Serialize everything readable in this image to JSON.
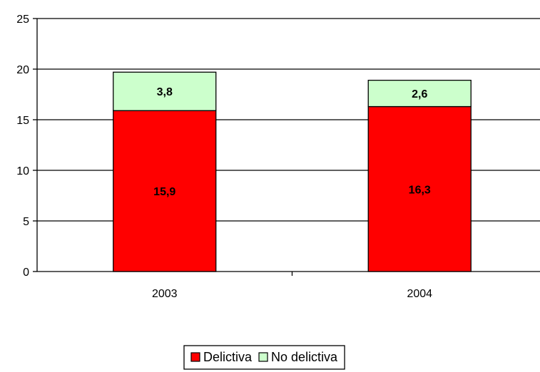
{
  "chart_data": {
    "type": "bar",
    "stacked": true,
    "categories": [
      "2003",
      "2004"
    ],
    "series": [
      {
        "name": "Delictiva",
        "values": [
          15.9,
          16.3
        ],
        "labels": [
          "15,9",
          "16,3"
        ],
        "color": "#ff0000"
      },
      {
        "name": "No delictiva",
        "values": [
          3.8,
          2.6
        ],
        "labels": [
          "3,8",
          "2,6"
        ],
        "color": "#ccffcc"
      }
    ],
    "title": "",
    "xlabel": "",
    "ylabel": "",
    "ylim": [
      0,
      25
    ],
    "yticks": [
      0,
      5,
      10,
      15,
      20,
      25
    ],
    "grid": true,
    "legend_position": "bottom"
  }
}
